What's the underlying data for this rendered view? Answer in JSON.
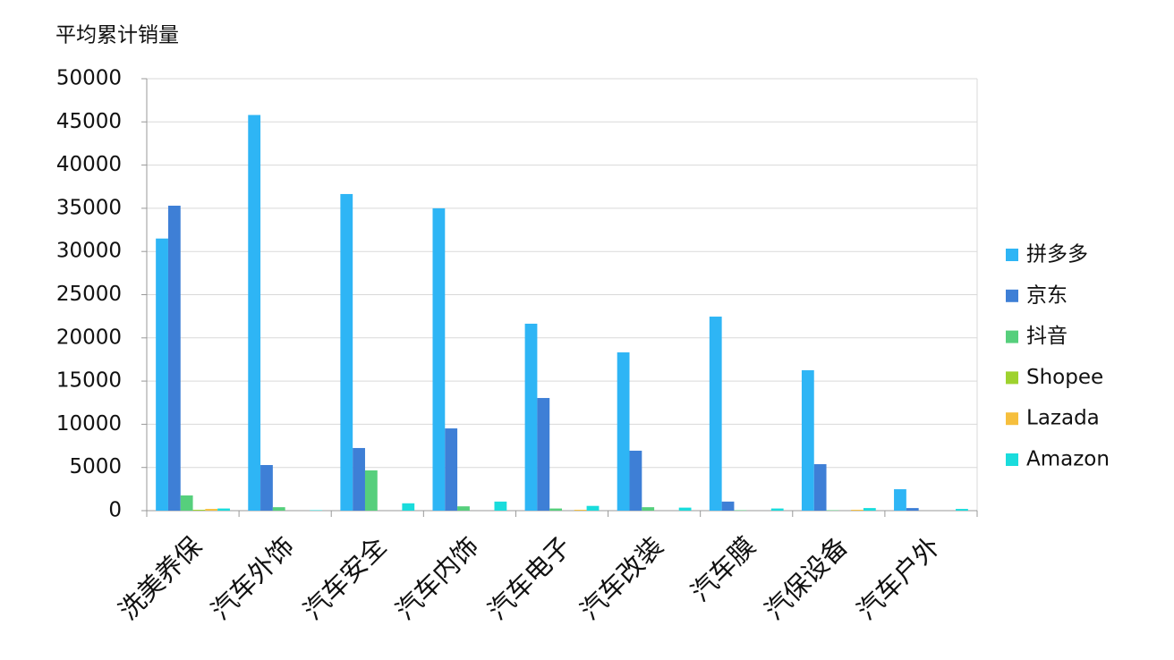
{
  "chart_data": {
    "type": "bar",
    "title": "平均累计销量",
    "categories": [
      "洗美养保",
      "汽车外饰",
      "汽车安全",
      "汽车内饰",
      "汽车电子",
      "汽车改装",
      "汽车膜",
      "汽保设备",
      "汽车户外"
    ],
    "series": [
      {
        "name": "拼多多",
        "color": "#2eb5f5",
        "values": [
          31500,
          45800,
          36650,
          35000,
          21640,
          18320,
          22460,
          16250,
          2480
        ]
      },
      {
        "name": "京东",
        "color": "#3e7fd6",
        "values": [
          35300,
          5280,
          7250,
          9520,
          13040,
          6940,
          1050,
          5380,
          300
        ]
      },
      {
        "name": "抖音",
        "color": "#56cf7c",
        "values": [
          1760,
          400,
          4660,
          500,
          250,
          400,
          50,
          50,
          0
        ]
      },
      {
        "name": "Shopee",
        "color": "#9ed22e",
        "values": [
          100,
          0,
          0,
          0,
          0,
          0,
          0,
          0,
          0
        ]
      },
      {
        "name": "Lazada",
        "color": "#f6bf3d",
        "values": [
          200,
          0,
          0,
          0,
          100,
          0,
          0,
          100,
          0
        ]
      },
      {
        "name": "Amazon",
        "color": "#1adcdc",
        "values": [
          250,
          50,
          850,
          1050,
          550,
          350,
          250,
          300,
          200
        ]
      }
    ],
    "ylim": [
      0,
      50000
    ],
    "yticks": [
      0,
      5000,
      10000,
      15000,
      20000,
      25000,
      30000,
      35000,
      40000,
      45000,
      50000
    ],
    "grid": true,
    "legend": "right"
  }
}
